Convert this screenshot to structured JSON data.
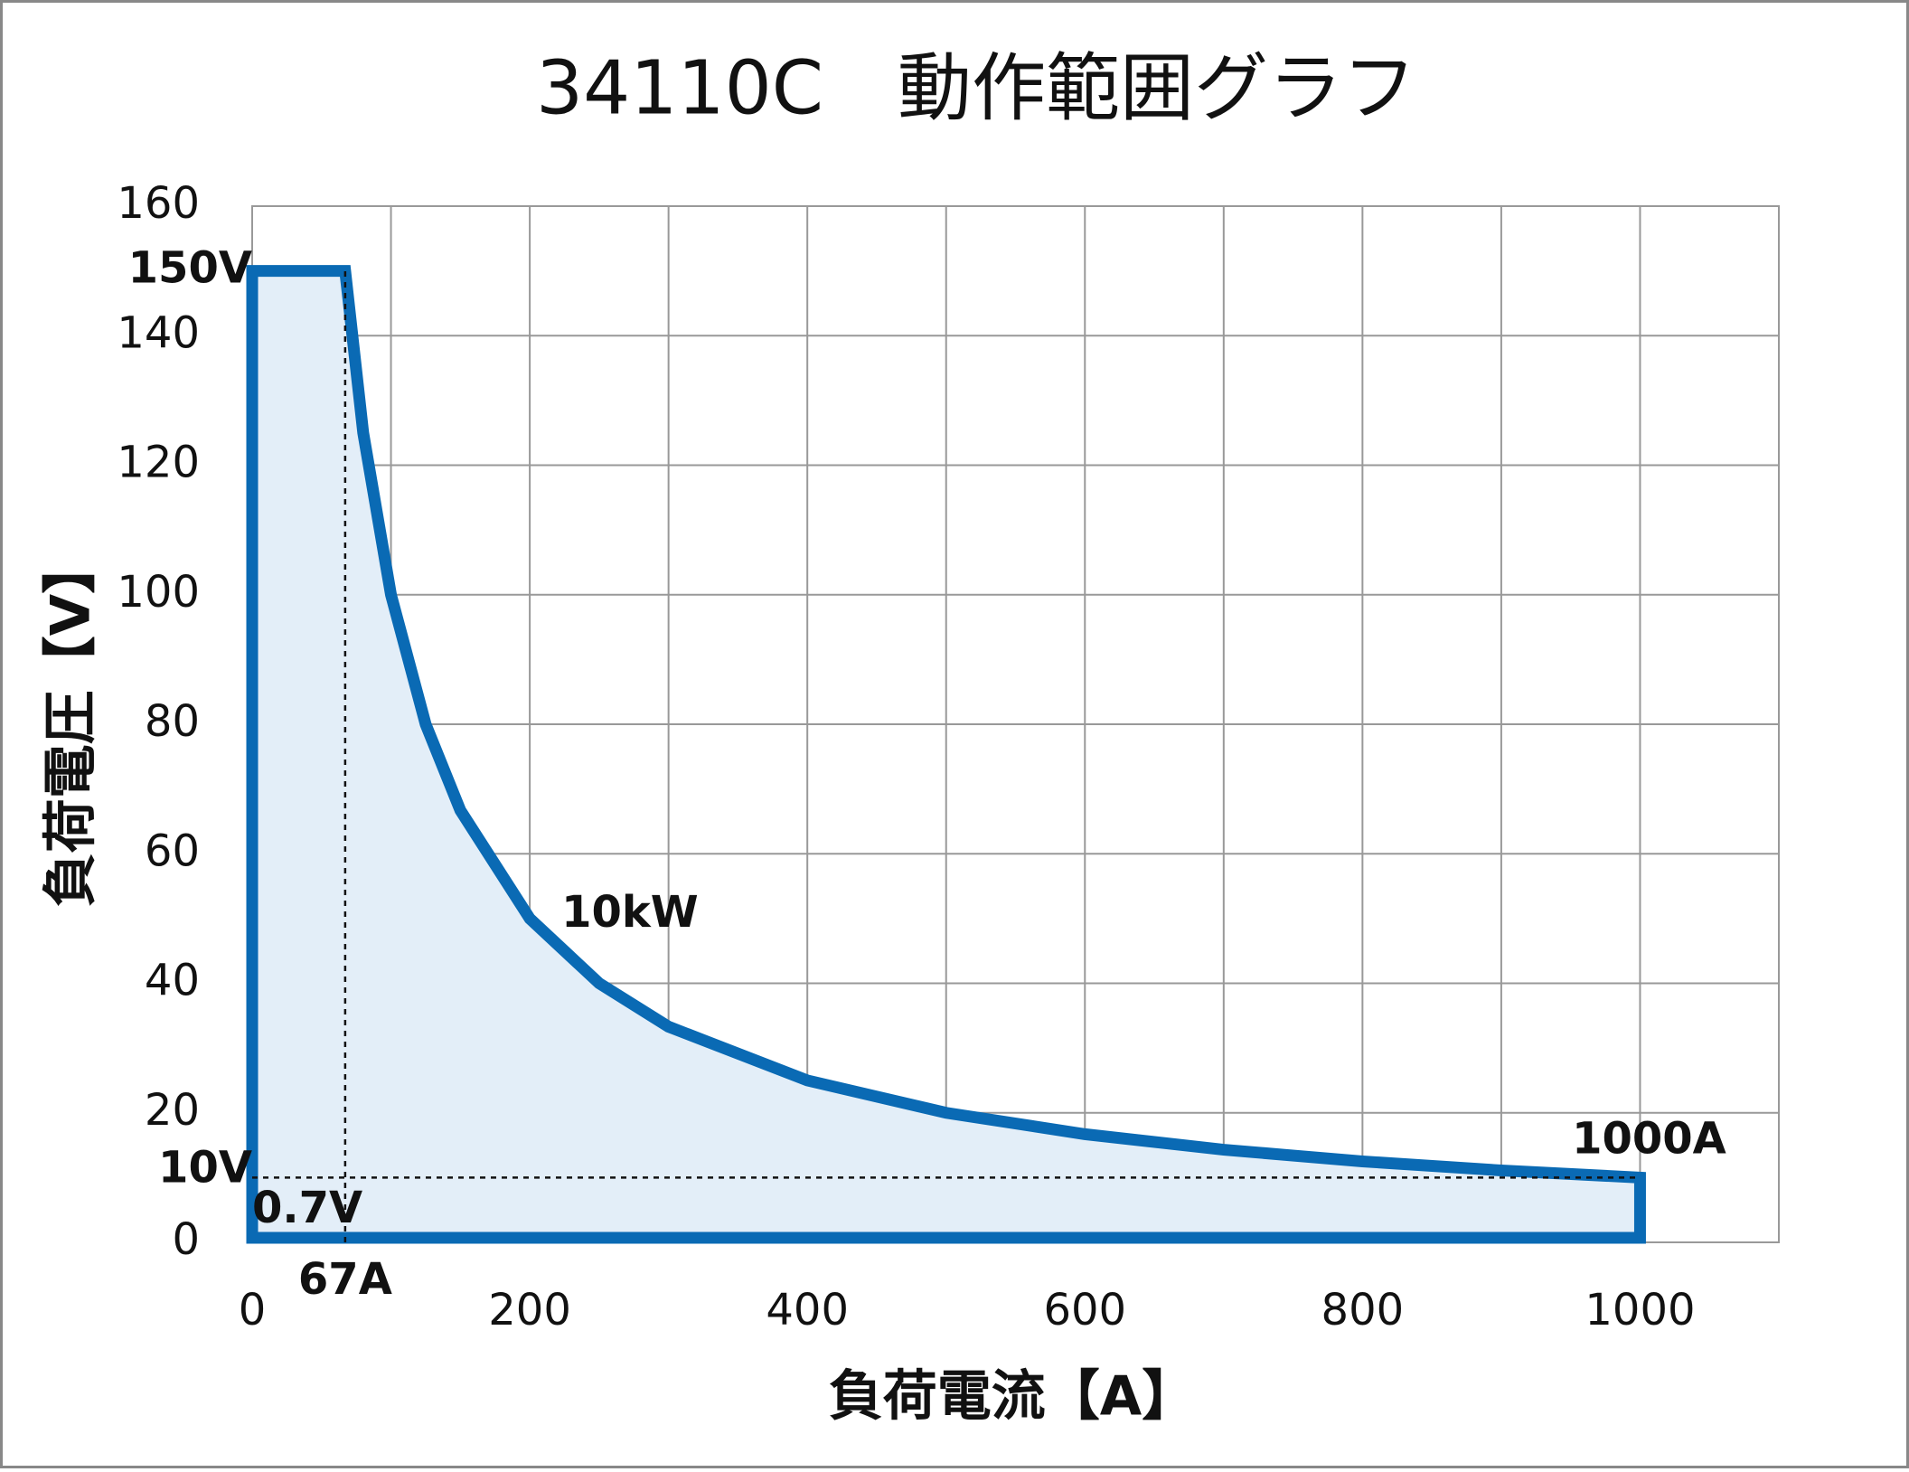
{
  "chart_data": {
    "type": "area",
    "title": "34110C　動作範囲グラフ",
    "x_label": "負荷電流【A】",
    "y_label": "負荷電圧【V】",
    "color": "#0a6ab4",
    "fill_color": "#e3eef8",
    "grid": true,
    "xlim": [
      0,
      1100
    ],
    "ylim": [
      0,
      160
    ],
    "xticks": [
      0,
      200,
      400,
      600,
      800,
      1000
    ],
    "xgrid_minor": [
      100,
      300,
      500,
      700,
      900
    ],
    "yticks": [
      0,
      20,
      40,
      60,
      80,
      100,
      120,
      140,
      160
    ],
    "x": [
      0,
      67,
      80,
      100,
      125,
      150,
      200,
      250,
      300,
      400,
      500,
      600,
      700,
      800,
      900,
      1000,
      1000,
      0
    ],
    "values": [
      150,
      150,
      125,
      100,
      80,
      66.7,
      50,
      40,
      33.3,
      25,
      20,
      16.7,
      14.3,
      12.5,
      11.1,
      10,
      0.7,
      0.7
    ],
    "reference_lines": [
      {
        "x": [
          0,
          1000
        ],
        "y": [
          10,
          10
        ]
      },
      {
        "x": [
          67,
          67
        ],
        "y": [
          0,
          150
        ]
      }
    ],
    "annotations": [
      {
        "text": "150V",
        "x": 0,
        "y": 150
      },
      {
        "text": "10V",
        "x": 0,
        "y": 10
      },
      {
        "text": "0.7V",
        "x": 0,
        "y": 0.7
      },
      {
        "text": "67A",
        "x": 67,
        "y": 0
      },
      {
        "text": "10kW",
        "x": 200,
        "y": 50
      },
      {
        "text": "1000A",
        "x": 1000,
        "y": 10
      }
    ]
  }
}
